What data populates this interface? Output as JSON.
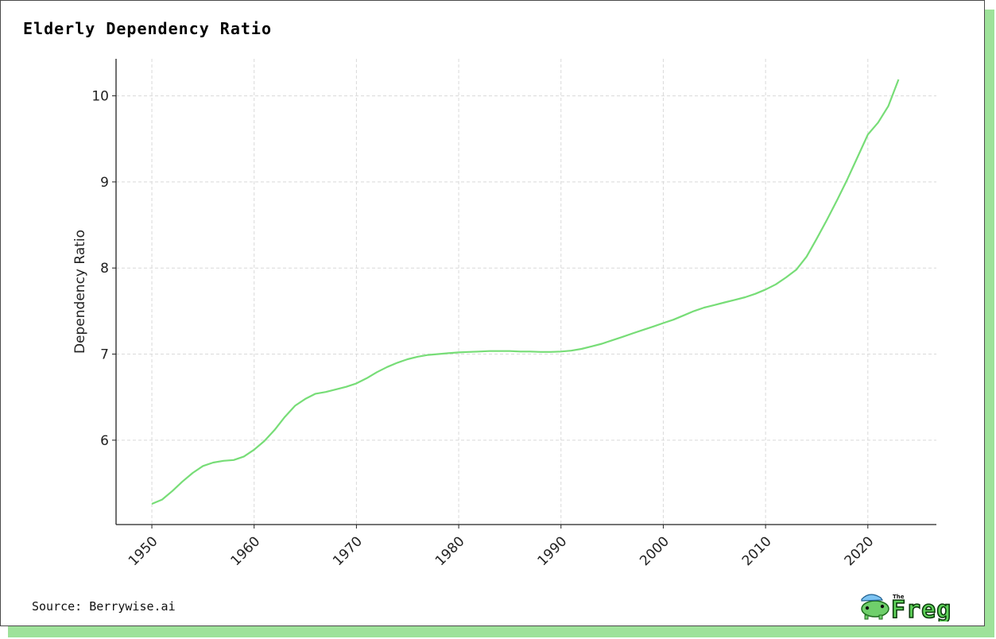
{
  "header": {
    "title": "Elderly Dependency Ratio"
  },
  "footer": {
    "source": "Source: Berrywise.ai"
  },
  "logo": {
    "small_text": "The",
    "big_text": "Freg"
  },
  "colors": {
    "line": "#77dd77",
    "frame_shadow": "#9ee29a",
    "grid": "#d9d9d9"
  },
  "chart_data": {
    "type": "line",
    "title": "Elderly Dependency Ratio",
    "xlabel": "",
    "ylabel": "Dependency Ratio",
    "xlim": [
      1946.5,
      2026.7
    ],
    "ylim": [
      5.02,
      10.43
    ],
    "xticks": [
      1950,
      1960,
      1970,
      1980,
      1990,
      2000,
      2010,
      2020
    ],
    "yticks": [
      6,
      7,
      8,
      9,
      10
    ],
    "grid": true,
    "legend": "none",
    "x": [
      1950,
      1951,
      1952,
      1953,
      1954,
      1955,
      1956,
      1957,
      1958,
      1959,
      1960,
      1961,
      1962,
      1963,
      1964,
      1965,
      1966,
      1967,
      1968,
      1969,
      1970,
      1971,
      1972,
      1973,
      1974,
      1975,
      1976,
      1977,
      1978,
      1979,
      1980,
      1981,
      1982,
      1983,
      1984,
      1985,
      1986,
      1987,
      1988,
      1989,
      1990,
      1991,
      1992,
      1993,
      1994,
      1995,
      1996,
      1997,
      1998,
      1999,
      2000,
      2001,
      2002,
      2003,
      2004,
      2005,
      2006,
      2007,
      2008,
      2009,
      2010,
      2011,
      2012,
      2013,
      2014,
      2015,
      2016,
      2017,
      2018,
      2019,
      2020,
      2021,
      2022,
      2023
    ],
    "series": [
      {
        "values": [
          5.26,
          5.31,
          5.41,
          5.52,
          5.62,
          5.7,
          5.74,
          5.76,
          5.77,
          5.81,
          5.89,
          5.99,
          6.12,
          6.27,
          6.4,
          6.48,
          6.54,
          6.56,
          6.59,
          6.62,
          6.66,
          6.72,
          6.79,
          6.85,
          6.9,
          6.94,
          6.97,
          6.99,
          7.0,
          7.01,
          7.02,
          7.025,
          7.03,
          7.035,
          7.035,
          7.035,
          7.03,
          7.03,
          7.025,
          7.025,
          7.03,
          7.04,
          7.06,
          7.09,
          7.12,
          7.16,
          7.2,
          7.24,
          7.28,
          7.32,
          7.36,
          7.4,
          7.45,
          7.5,
          7.54,
          7.57,
          7.6,
          7.63,
          7.66,
          7.7,
          7.75,
          7.81,
          7.89,
          7.98,
          8.13,
          8.34,
          8.56,
          8.79,
          9.03,
          9.29,
          9.55,
          9.69,
          9.88,
          10.19
        ]
      }
    ]
  }
}
